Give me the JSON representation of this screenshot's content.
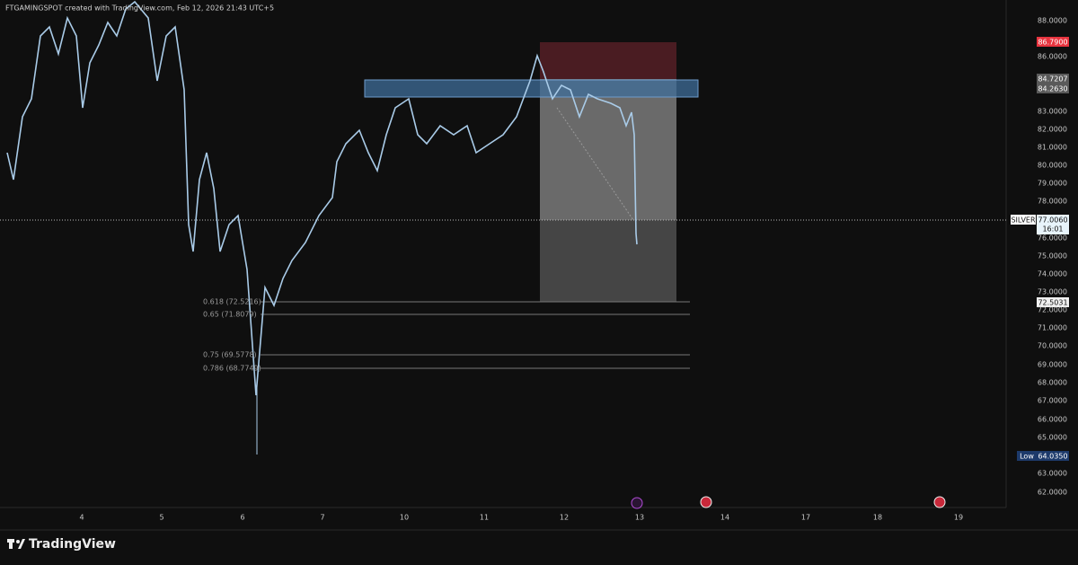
{
  "header": {
    "text": "FTGAMINGSPOT created with TradingView.com, Feb 12, 2026 21:43 UTC+5"
  },
  "price_axis": [
    "88.0000",
    "86.0000",
    "83.0000",
    "82.0000",
    "81.0000",
    "80.0000",
    "79.0000",
    "78.0000",
    "76.0000",
    "75.0000",
    "74.0000",
    "73.0000",
    "72.0000",
    "71.0000",
    "70.0000",
    "69.0000",
    "68.0000",
    "67.0000",
    "66.0000",
    "65.0000",
    "63.0000",
    "62.0000"
  ],
  "date_axis": [
    "4",
    "5",
    "6",
    "7",
    "10",
    "11",
    "12",
    "13",
    "14",
    "17",
    "18",
    "19"
  ],
  "price_tags": {
    "stop": "86.7900",
    "upper_zone": "84.7207",
    "lower_zone": "84.2630",
    "symbol": "SILVER",
    "last_price": "77.0060",
    "countdown": "16:01",
    "target": "72.5031",
    "low_label": "Low",
    "low_value": "64.0350"
  },
  "fib_levels": [
    "0.618 (72.5216)",
    "0.65 (71.8079)",
    "0.75 (69.5778)",
    "0.786 (68.7749)"
  ],
  "footer": {
    "brand": "TradingView"
  }
}
